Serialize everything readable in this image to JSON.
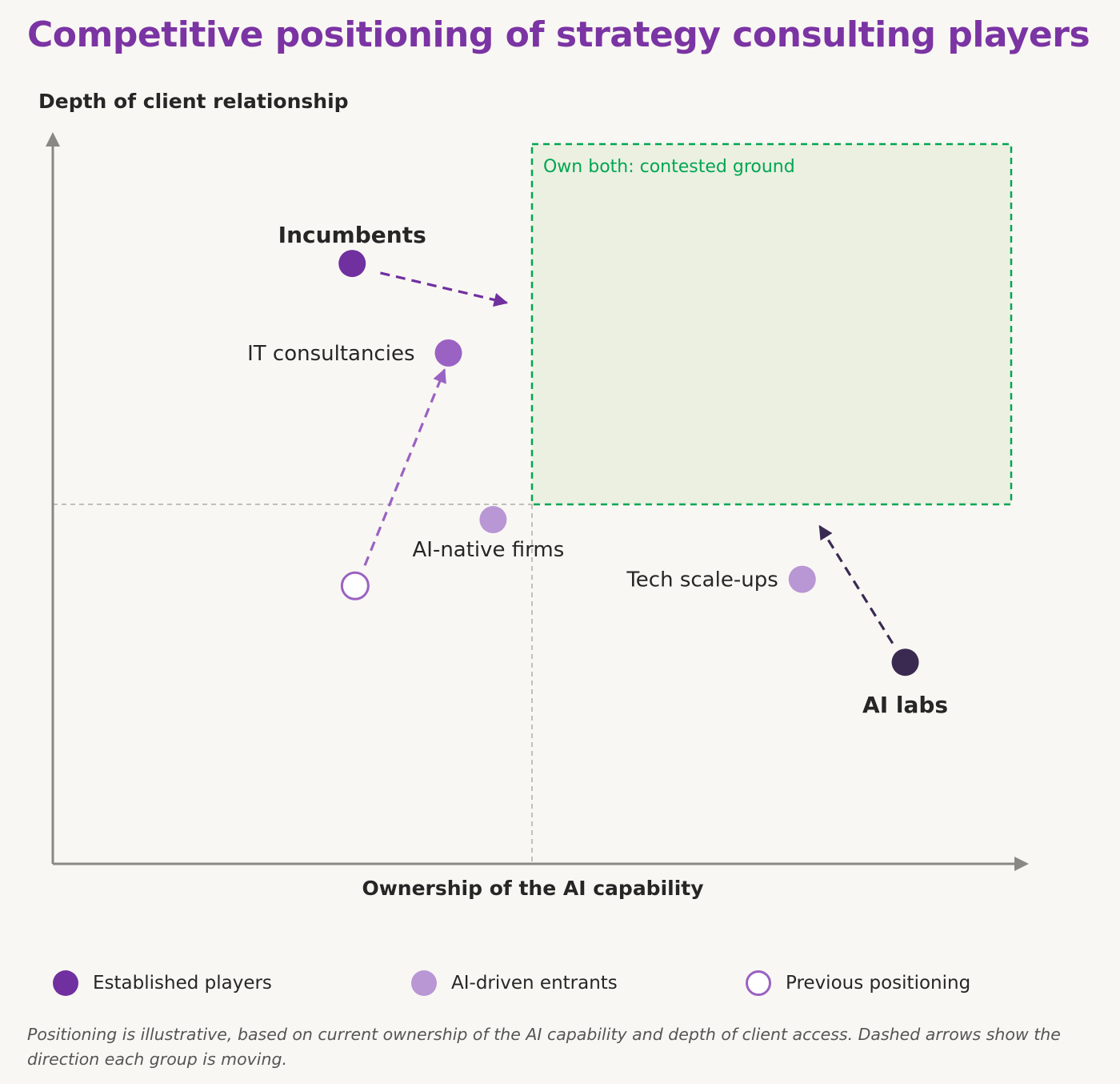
{
  "title": "Competitive positioning of strategy consulting players",
  "chart_data": {
    "type": "scatter",
    "title": "Competitive positioning of strategy consulting players",
    "xlabel": "Ownership of the AI capability",
    "ylabel": "Depth of client relationship",
    "xlim": [
      0,
      100
    ],
    "ylim": [
      0,
      100
    ],
    "grid": false,
    "legend_position": "bottom",
    "quadrant_divider": {
      "x": 49.3,
      "y": 49.4
    },
    "highlight_region": {
      "label": "Own both: contested ground",
      "x_range": [
        49.3,
        98.6
      ],
      "y_range": [
        49.4,
        98.9
      ],
      "color": "#00a651",
      "fill": "#ebf0e1"
    },
    "series": [
      {
        "name": "Established players",
        "color": "#7030a0",
        "style": "filled"
      },
      {
        "name": "AI-driven entrants",
        "color": "#b996d4",
        "style": "filled"
      },
      {
        "name": "Previous positioning",
        "color": "#9a62c2",
        "style": "hollow"
      }
    ],
    "points": [
      {
        "label": "Incumbents",
        "x": 30.8,
        "y": 82.5,
        "color": "#7030a0",
        "bold": true,
        "style": "filled"
      },
      {
        "label": "IT consultancies",
        "x": 40.7,
        "y": 70.2,
        "color": "#9a62c2",
        "bold": false,
        "style": "filled"
      },
      {
        "label": "AI-native firms",
        "x": 45.3,
        "y": 47.3,
        "color": "#b996d4",
        "bold": false,
        "style": "filled"
      },
      {
        "label": "Tech scale-ups",
        "x": 77.1,
        "y": 39.1,
        "color": "#b996d4",
        "bold": false,
        "style": "filled"
      },
      {
        "label": "AI labs",
        "x": 87.7,
        "y": 27.7,
        "color": "#3a2a52",
        "bold": true,
        "style": "filled"
      },
      {
        "label": "",
        "x": 31.1,
        "y": 38.2,
        "color": "#9a62c2",
        "bold": false,
        "style": "hollow"
      }
    ],
    "arrows": [
      {
        "from": [
          33.7,
          81.2
        ],
        "to": [
          46.7,
          77.1
        ],
        "color": "#7030a0"
      },
      {
        "from": [
          32.1,
          41.0
        ],
        "to": [
          40.3,
          67.9
        ],
        "color": "#9a62c2"
      },
      {
        "from": [
          86.4,
          30.3
        ],
        "to": [
          78.9,
          46.4
        ],
        "color": "#3a2a52"
      }
    ]
  },
  "legend": [
    {
      "label": "Established players",
      "color": "#7030a0",
      "style": "filled"
    },
    {
      "label": "AI-driven entrants",
      "color": "#b996d4",
      "style": "filled"
    },
    {
      "label": "Previous positioning",
      "color": "#9a62c2",
      "style": "hollow"
    }
  ],
  "footnote": "Positioning is illustrative, based on current ownership of the AI capability and depth of client access. Dashed arrows show the direction each group is moving."
}
